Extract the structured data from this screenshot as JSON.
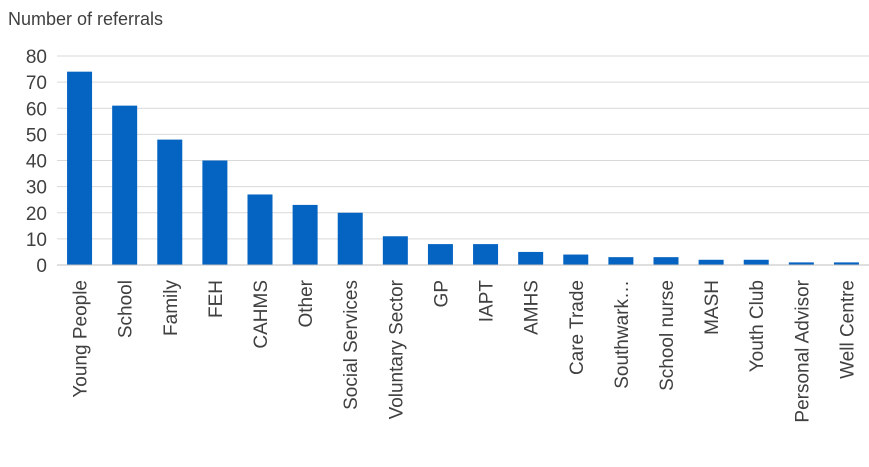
{
  "chart_data": {
    "type": "bar",
    "title": "",
    "ylabel": "Number of referrals",
    "xlabel": "",
    "ylim": [
      0,
      80
    ],
    "yticks": [
      0,
      10,
      20,
      30,
      40,
      50,
      60,
      70,
      80
    ],
    "grid": true,
    "bar_color": "#0563C1",
    "categories": [
      "Young People",
      "School",
      "Family",
      "FEH",
      "CAHMS",
      "Other",
      "Social Services",
      "Voluntary Sector",
      "GP",
      "IAPT",
      "AMHS",
      "Care Trade",
      "Southwark…",
      "School nurse",
      "MASH",
      "Youth Club",
      "Personal Advisor",
      "Well Centre"
    ],
    "values": [
      74,
      61,
      48,
      40,
      27,
      23,
      20,
      11,
      8,
      8,
      5,
      4,
      3,
      3,
      2,
      2,
      1,
      1
    ]
  }
}
